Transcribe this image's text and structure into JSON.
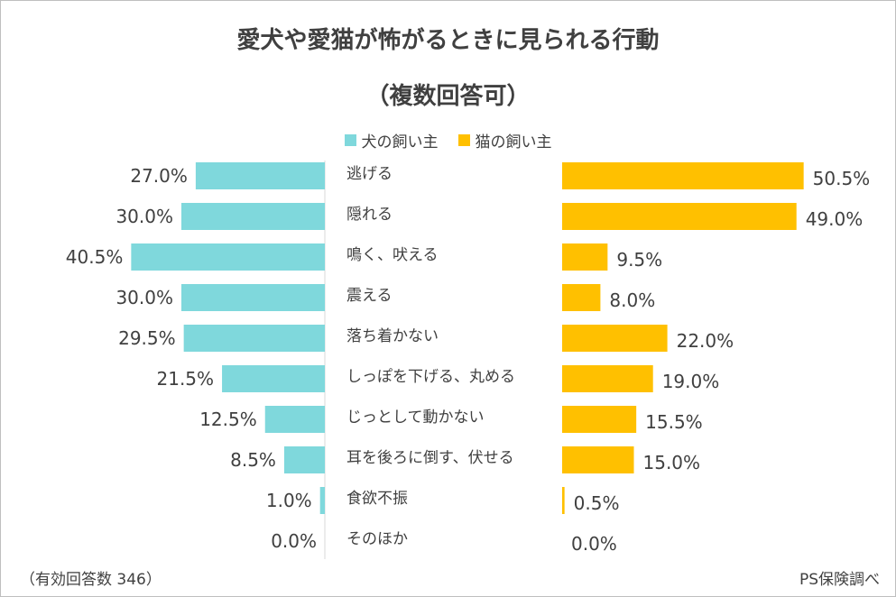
{
  "chart_data": {
    "type": "bar",
    "title": "愛犬や愛猫が怖がるときに見られる行動",
    "subtitle": "（複数回答可）",
    "categories": [
      "逃げる",
      "隠れる",
      "鳴く、吠える",
      "震える",
      "落ち着かない",
      "しっぽを下げる、丸める",
      "じっとして動かない",
      "耳を後ろに倒す、伏せる",
      "食欲不振",
      "そのほか"
    ],
    "series": [
      {
        "name": "犬の飼い主",
        "color": "#7fd8dc",
        "values": [
          27.0,
          30.0,
          40.5,
          30.0,
          29.5,
          21.5,
          12.5,
          8.5,
          1.0,
          0.0
        ],
        "labels": [
          "27.0%",
          "30.0%",
          "40.5%",
          "30.0%",
          "29.5%",
          "21.5%",
          "12.5%",
          "8.5%",
          "1.0%",
          "0.0%"
        ]
      },
      {
        "name": "猫の飼い主",
        "color": "#ffc000",
        "values": [
          50.5,
          49.0,
          9.5,
          8.0,
          22.0,
          19.0,
          15.5,
          15.0,
          0.5,
          0.0
        ],
        "labels": [
          "50.5%",
          "49.0%",
          "9.5%",
          "8.0%",
          "22.0%",
          "19.0%",
          "15.5%",
          "15.0%",
          "0.5%",
          "0.0%"
        ]
      }
    ],
    "xlim": [
      0,
      55
    ],
    "legend": "top-center",
    "grid": false
  },
  "footer": {
    "note": "（有効回答数 346）",
    "source": "PS保険調べ"
  }
}
